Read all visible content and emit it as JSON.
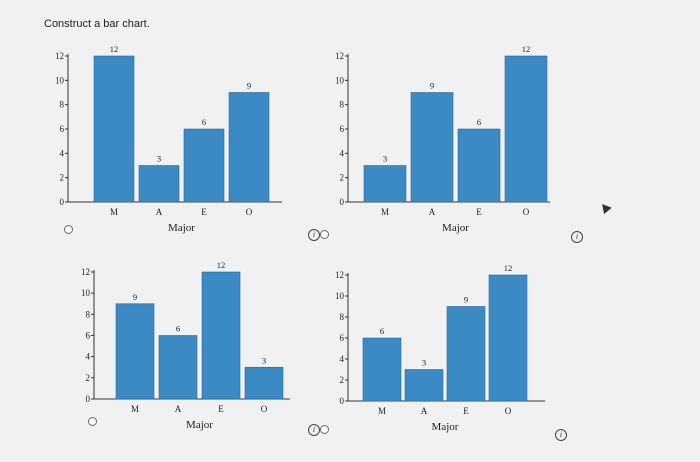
{
  "question": {
    "text": "Construct a bar chart."
  },
  "options": [
    {
      "id": "A",
      "chart_index": 0
    },
    {
      "id": "B",
      "chart_index": 1
    },
    {
      "id": "C",
      "chart_index": 2
    },
    {
      "id": "D",
      "chart_index": 3
    }
  ],
  "chart_data": [
    {
      "type": "bar",
      "categories": [
        "M",
        "A",
        "E",
        "O"
      ],
      "values": [
        12,
        3,
        6,
        9
      ],
      "data_labels": [
        "12",
        "3",
        "6",
        "9"
      ],
      "xlabel": "Major",
      "ylabel": "",
      "ylim": [
        0,
        12
      ],
      "yticks": [
        0,
        2,
        4,
        6,
        8,
        10,
        12
      ],
      "bar_color": "#3b8ac4",
      "grid": false
    },
    {
      "type": "bar",
      "categories": [
        "M",
        "A",
        "E",
        "O"
      ],
      "values": [
        3,
        9,
        6,
        12
      ],
      "data_labels": [
        "3",
        "9",
        "6",
        "12"
      ],
      "xlabel": "Major",
      "ylabel": "",
      "ylim": [
        0,
        12
      ],
      "yticks": [
        0,
        2,
        4,
        6,
        8,
        10,
        12
      ],
      "bar_color": "#3b8ac4",
      "grid": false
    },
    {
      "type": "bar",
      "categories": [
        "M",
        "A",
        "E",
        "O"
      ],
      "values": [
        9,
        6,
        12,
        3
      ],
      "data_labels": [
        "9",
        "6",
        "12",
        "3"
      ],
      "xlabel": "Major",
      "ylabel": "",
      "ylim": [
        0,
        12
      ],
      "yticks": [
        0,
        2,
        4,
        6,
        8,
        10,
        12
      ],
      "bar_color": "#3b8ac4",
      "grid": false
    },
    {
      "type": "bar",
      "categories": [
        "M",
        "A",
        "E",
        "O"
      ],
      "values": [
        6,
        3,
        9,
        12
      ],
      "data_labels": [
        "6",
        "3",
        "9",
        "12"
      ],
      "xlabel": "Major",
      "ylabel": "",
      "ylim": [
        0,
        12
      ],
      "yticks": [
        0,
        2,
        4,
        6,
        8,
        10,
        12
      ],
      "bar_color": "#3b8ac4",
      "grid": false
    }
  ]
}
